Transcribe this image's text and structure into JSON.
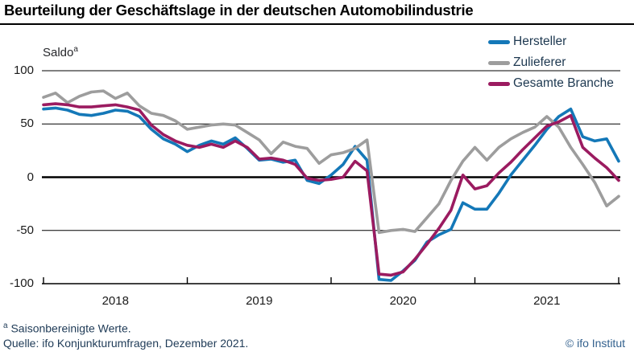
{
  "header": {
    "title": "Beurteilung der Geschäftslage in der deutschen Automobilindustrie"
  },
  "plot": {
    "unit_label": "Saldo",
    "unit_label_superscript": "a"
  },
  "legend": {
    "items": [
      {
        "label": "Hersteller",
        "color": "#1478b8"
      },
      {
        "label": "Zulieferer",
        "color": "#9d9d9d"
      },
      {
        "label": "Gesamte Branche",
        "color": "#9b1b60"
      }
    ]
  },
  "footer": {
    "footnote_superscript": "a",
    "footnote": "Saisonbereinigte Werte.",
    "source": "Quelle: ifo Konjunkturumfragen, Dezember 2021.",
    "copyright": "© ifo Institut"
  },
  "chart_data": {
    "type": "line",
    "title": "Beurteilung der Geschäftslage in der deutschen Automobilindustrie",
    "ylabel": "Saldo (saisonbereinigte Werte)",
    "xlabel": "",
    "ylim": [
      -100,
      100
    ],
    "yticks": [
      100,
      50,
      0,
      -50,
      -100
    ],
    "xticks": [
      "2018",
      "2019",
      "2020",
      "2021"
    ],
    "grid": "horizontal",
    "zero_line_emphasized": true,
    "legend_position": "top-right",
    "x_unit": "month",
    "x": [
      "2017-12",
      "2018-01",
      "2018-02",
      "2018-03",
      "2018-04",
      "2018-05",
      "2018-06",
      "2018-07",
      "2018-08",
      "2018-09",
      "2018-10",
      "2018-11",
      "2018-12",
      "2019-01",
      "2019-02",
      "2019-03",
      "2019-04",
      "2019-05",
      "2019-06",
      "2019-07",
      "2019-08",
      "2019-09",
      "2019-10",
      "2019-11",
      "2019-12",
      "2020-01",
      "2020-02",
      "2020-03",
      "2020-04",
      "2020-05",
      "2020-06",
      "2020-07",
      "2020-08",
      "2020-09",
      "2020-10",
      "2020-11",
      "2020-12",
      "2021-01",
      "2021-02",
      "2021-03",
      "2021-04",
      "2021-05",
      "2021-06",
      "2021-07",
      "2021-08",
      "2021-09",
      "2021-10",
      "2021-11",
      "2021-12"
    ],
    "series": [
      {
        "name": "Hersteller",
        "color": "#1478b8",
        "values": [
          64,
          65,
          63,
          59,
          58,
          60,
          63,
          62,
          57,
          45,
          36,
          31,
          24,
          30,
          34,
          31,
          37,
          27,
          16,
          17,
          14,
          16,
          -3,
          -6,
          2,
          12,
          29,
          16,
          -96,
          -97,
          -88,
          -78,
          -61,
          -54,
          -49,
          -24,
          -30,
          -30,
          -15,
          2,
          16,
          30,
          45,
          57,
          64,
          38,
          34,
          36,
          15
        ]
      },
      {
        "name": "Zulieferer",
        "color": "#9d9d9d",
        "values": [
          75,
          79,
          70,
          76,
          80,
          81,
          74,
          79,
          67,
          60,
          58,
          53,
          45,
          47,
          49,
          50,
          49,
          42,
          35,
          22,
          33,
          29,
          27,
          13,
          21,
          23,
          27,
          35,
          -52,
          -50,
          -49,
          -51,
          -38,
          -25,
          -3,
          15,
          28,
          16,
          28,
          36,
          42,
          47,
          57,
          47,
          28,
          12,
          -5,
          -27,
          -18
        ]
      },
      {
        "name": "Gesamte Branche",
        "color": "#9b1b60",
        "values": [
          68,
          69,
          68,
          66,
          66,
          67,
          68,
          66,
          63,
          49,
          40,
          34,
          30,
          28,
          31,
          28,
          34,
          28,
          17,
          18,
          16,
          12,
          -1,
          -3,
          -2,
          0,
          15,
          6,
          -91,
          -92,
          -89,
          -77,
          -63,
          -48,
          -31,
          2,
          -11,
          -8,
          4,
          14,
          26,
          37,
          48,
          52,
          58,
          28,
          18,
          9,
          -3
        ]
      }
    ]
  }
}
